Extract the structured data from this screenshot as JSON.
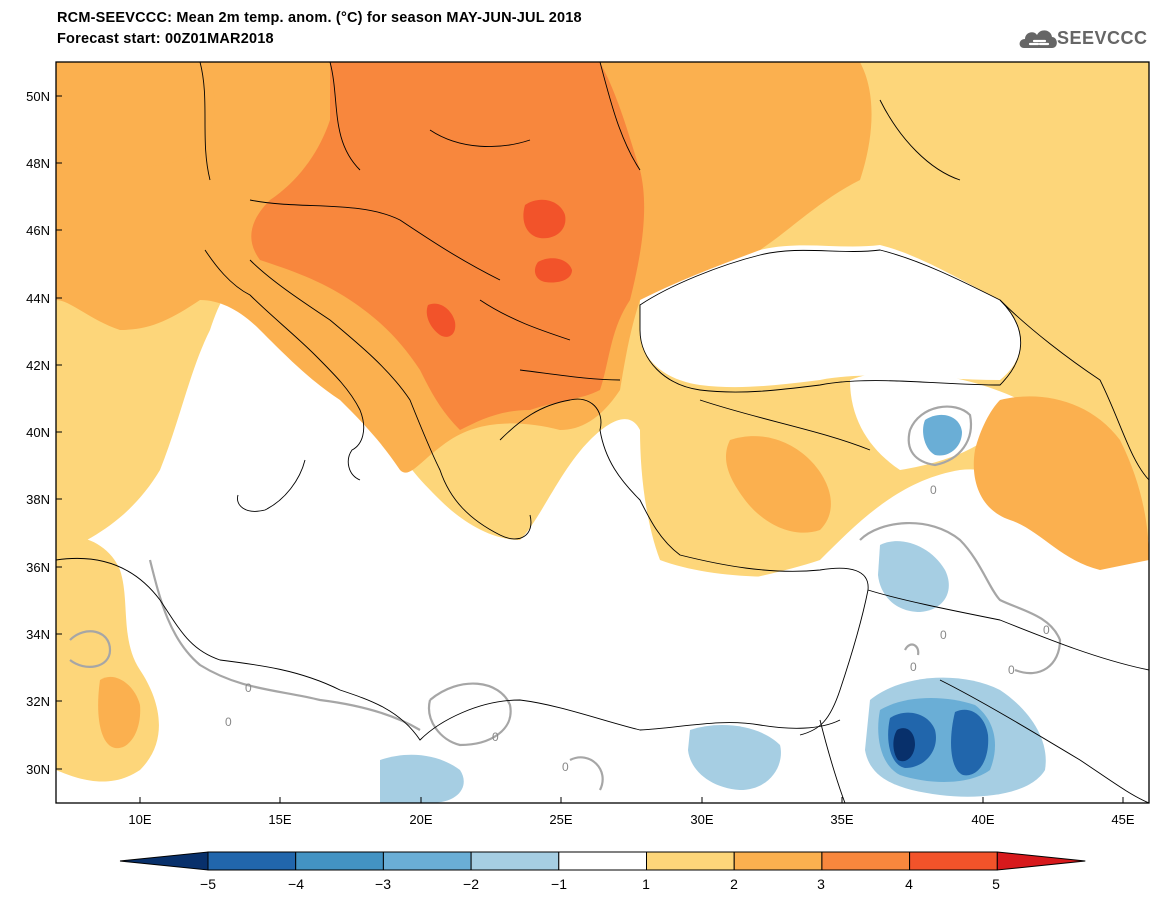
{
  "title": {
    "line1": "RCM-SEEVCCC: Mean 2m temp. anom. (°C) for season MAY-JUN-JUL 2018",
    "line2": "Forecast start: 00Z01MAR2018"
  },
  "logo": {
    "text": "SEEVCCC",
    "icon": "cloud-icon"
  },
  "map": {
    "lat_labels": [
      "50N",
      "48N",
      "46N",
      "44N",
      "42N",
      "40N",
      "38N",
      "36N",
      "34N",
      "32N",
      "30N"
    ],
    "lon_labels": [
      "10E",
      "15E",
      "20E",
      "25E",
      "30E",
      "35E",
      "40E",
      "45E"
    ],
    "contour_labels": [
      "0",
      "0",
      "0",
      "0",
      "0",
      "0",
      "0",
      "0",
      "0"
    ]
  },
  "colorbar": {
    "ticks": [
      "−5",
      "−4",
      "−3",
      "−2",
      "−1",
      "1",
      "2",
      "3",
      "4",
      "5"
    ],
    "colors": [
      "#08306b",
      "#2166ac",
      "#4393c3",
      "#6aaed6",
      "#a6cee3",
      "#ffffff",
      "#fdd67a",
      "#fbb04f",
      "#f8873d",
      "#f2532a",
      "#d7191c"
    ]
  },
  "colors": {
    "neutral": "#ffffff",
    "warm1": "#fdd67a",
    "warm2": "#fbb04f",
    "warm3": "#f8873d",
    "warm4": "#f2532a",
    "cool1": "#a6cee3",
    "cool2": "#6aaed6",
    "cool3": "#4393c3",
    "cool4": "#2166ac",
    "cool5": "#08306b",
    "contour_zero": "#a6a6a6",
    "coast": "#000000"
  }
}
